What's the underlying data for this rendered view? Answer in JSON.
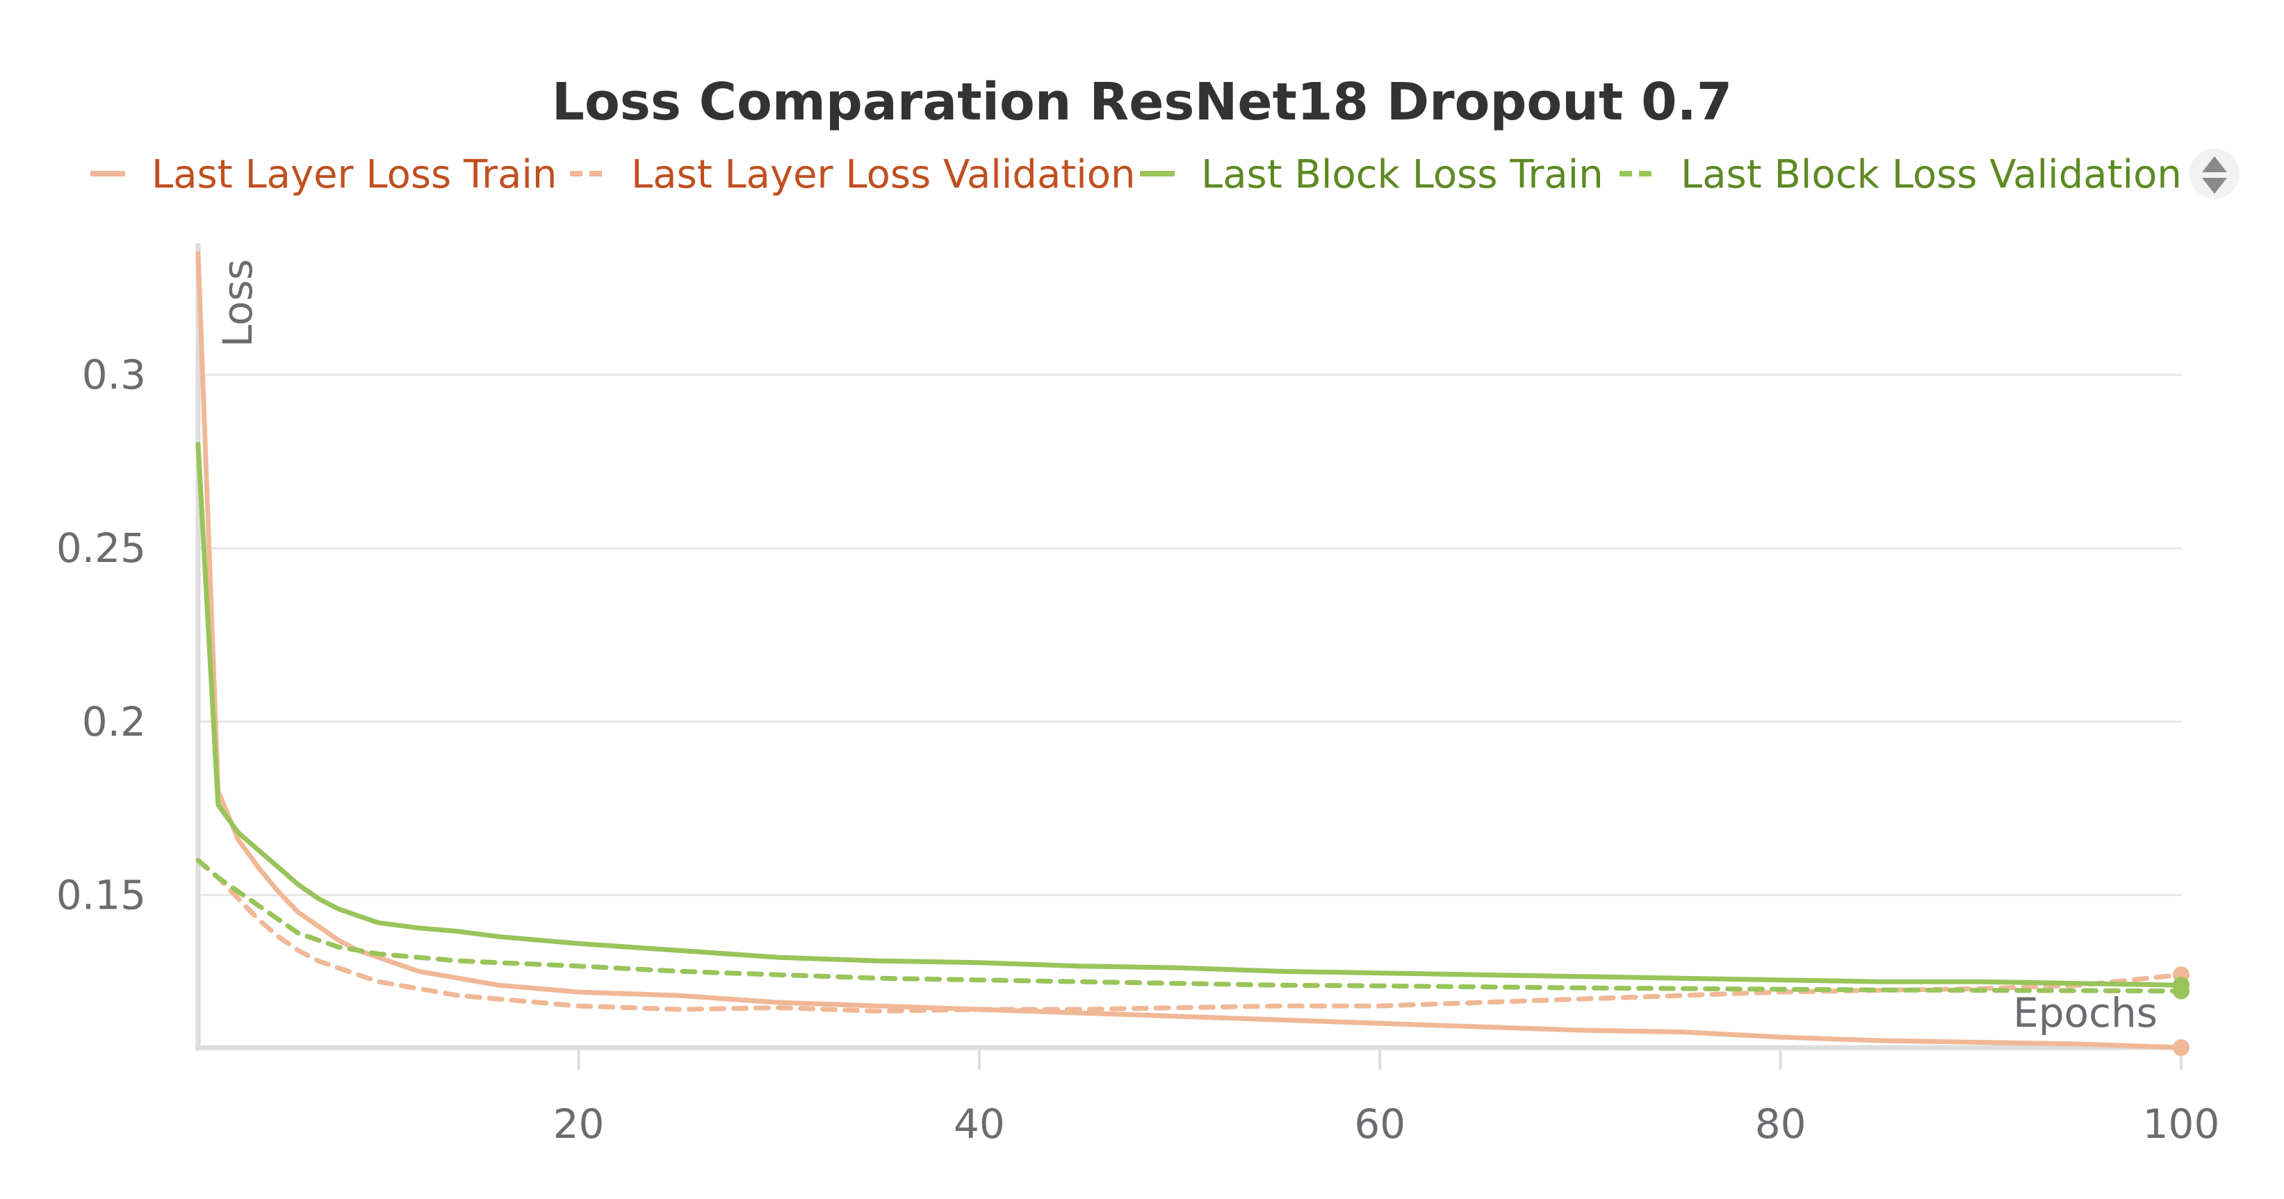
{
  "chart_data": {
    "type": "line",
    "title": "Loss Comparation ResNet18 Dropout 0.7",
    "xlabel": "Epochs",
    "ylabel": "Loss",
    "xlim": [
      1,
      100
    ],
    "ylim": [
      0.106,
      0.34
    ],
    "x_ticks": [
      "20",
      "40",
      "60",
      "80",
      "100"
    ],
    "y_ticks": [
      "0.15",
      "0.2",
      "0.25",
      "0.3"
    ],
    "grid": true,
    "legend_position": "top",
    "series": [
      {
        "name": "Last Layer Loss Train",
        "color": "#f0b896",
        "style": "solid",
        "x": [
          1,
          2,
          3,
          4,
          5,
          6,
          7,
          8,
          9,
          10,
          12,
          14,
          16,
          18,
          20,
          25,
          30,
          35,
          40,
          45,
          50,
          55,
          60,
          65,
          70,
          75,
          80,
          85,
          90,
          95,
          100
        ],
        "y": [
          0.335,
          0.18,
          0.166,
          0.158,
          0.151,
          0.145,
          0.141,
          0.137,
          0.134,
          0.132,
          0.128,
          0.126,
          0.124,
          0.123,
          0.122,
          0.121,
          0.119,
          0.118,
          0.117,
          0.116,
          0.115,
          0.114,
          0.113,
          0.112,
          0.111,
          0.1105,
          0.109,
          0.108,
          0.1075,
          0.107,
          0.106
        ]
      },
      {
        "name": "Last Layer Loss Validation",
        "color": "#f0b896",
        "style": "dashed",
        "x": [
          1,
          2,
          3,
          4,
          5,
          6,
          7,
          8,
          9,
          10,
          12,
          14,
          16,
          18,
          20,
          25,
          30,
          35,
          40,
          45,
          50,
          55,
          60,
          65,
          70,
          75,
          80,
          85,
          90,
          95,
          100
        ],
        "y": [
          0.16,
          0.155,
          0.149,
          0.143,
          0.138,
          0.134,
          0.131,
          0.129,
          0.127,
          0.125,
          0.123,
          0.121,
          0.12,
          0.119,
          0.118,
          0.117,
          0.1175,
          0.1165,
          0.117,
          0.117,
          0.1175,
          0.118,
          0.118,
          0.119,
          0.12,
          0.121,
          0.122,
          0.1225,
          0.123,
          0.124,
          0.127
        ]
      },
      {
        "name": "Last Block Loss Train",
        "color": "#98c45a",
        "style": "solid",
        "x": [
          1,
          2,
          3,
          4,
          5,
          6,
          7,
          8,
          9,
          10,
          12,
          14,
          16,
          18,
          20,
          25,
          30,
          35,
          40,
          45,
          50,
          55,
          60,
          65,
          70,
          75,
          80,
          85,
          90,
          95,
          100
        ],
        "y": [
          0.28,
          0.176,
          0.168,
          0.163,
          0.158,
          0.153,
          0.149,
          0.146,
          0.144,
          0.142,
          0.1405,
          0.1395,
          0.138,
          0.137,
          0.136,
          0.134,
          0.132,
          0.131,
          0.1305,
          0.1295,
          0.129,
          0.128,
          0.1275,
          0.127,
          0.1265,
          0.126,
          0.1255,
          0.125,
          0.125,
          0.1245,
          0.124
        ]
      },
      {
        "name": "Last Block Loss Validation",
        "color": "#98c45a",
        "style": "dashed",
        "x": [
          1,
          2,
          3,
          4,
          5,
          6,
          7,
          8,
          9,
          10,
          12,
          14,
          16,
          18,
          20,
          25,
          30,
          35,
          40,
          45,
          50,
          55,
          60,
          65,
          70,
          75,
          80,
          85,
          90,
          95,
          100
        ],
        "y": [
          0.16,
          0.155,
          0.151,
          0.147,
          0.143,
          0.139,
          0.137,
          0.135,
          0.134,
          0.133,
          0.132,
          0.131,
          0.1305,
          0.13,
          0.1295,
          0.128,
          0.127,
          0.126,
          0.1255,
          0.125,
          0.1245,
          0.124,
          0.1238,
          0.1235,
          0.1232,
          0.123,
          0.1228,
          0.1226,
          0.1225,
          0.1224,
          0.1223
        ]
      }
    ]
  },
  "legend": {
    "text_colors": [
      "#c0501f",
      "#c0501f",
      "#5c8a22",
      "#5c8a22"
    ]
  }
}
